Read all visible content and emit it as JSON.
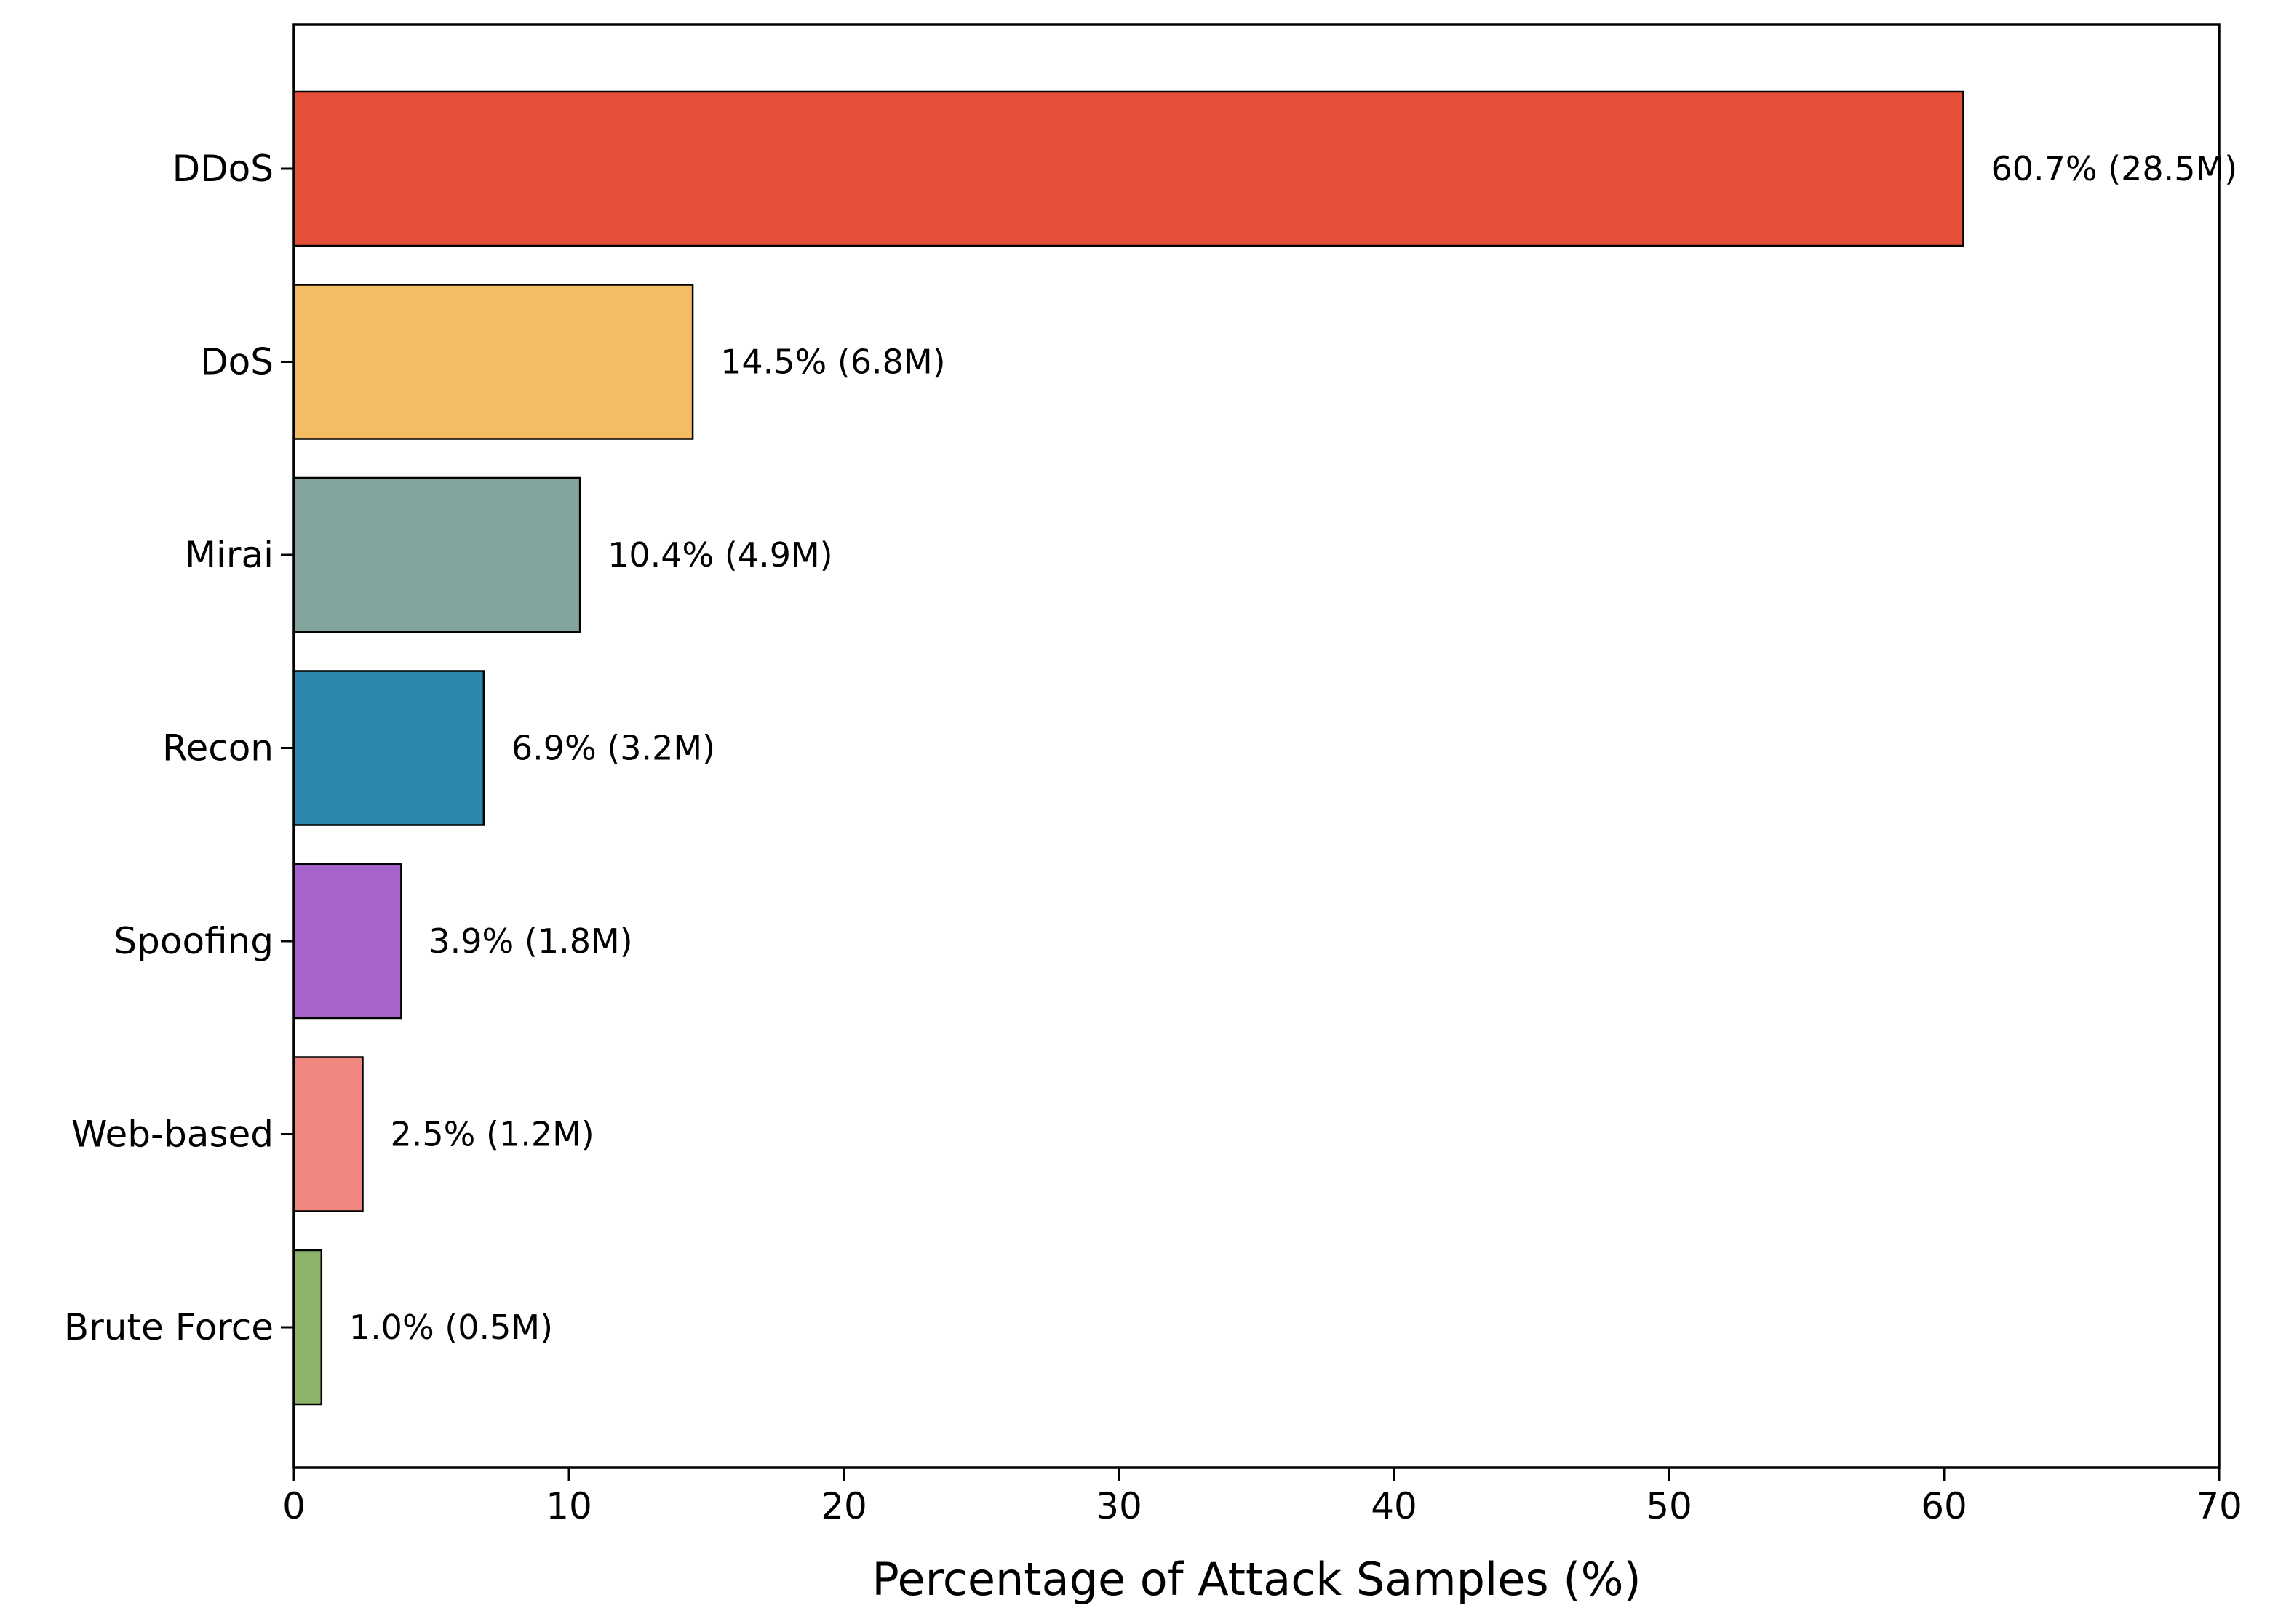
{
  "chart_data": {
    "type": "bar",
    "orientation": "horizontal",
    "title": "",
    "xlabel": "Percentage of Attack Samples (%)",
    "ylabel": "",
    "xlim": [
      0,
      70
    ],
    "x_ticks": [
      0,
      10,
      20,
      30,
      40,
      50,
      60,
      70
    ],
    "grid": false,
    "categories": [
      "DDoS",
      "DoS",
      "Mirai",
      "Recon",
      "Spoofing",
      "Web-based",
      "Brute Force"
    ],
    "values": [
      60.7,
      14.5,
      10.4,
      6.9,
      3.9,
      2.5,
      1.0
    ],
    "samples_millions": [
      28.5,
      6.8,
      4.9,
      3.2,
      1.8,
      1.2,
      0.5
    ],
    "data_labels": [
      "60.7% (28.5M)",
      "14.5% (6.8M)",
      "10.4% (4.9M)",
      "6.9% (3.2M)",
      "3.9% (1.8M)",
      "2.5% (1.2M)",
      "1.0% (0.5M)"
    ],
    "colors": [
      "#E65038",
      "#F4BD63",
      "#84A59D",
      "#2D86AB",
      "#A663CB",
      "#F08780",
      "#8DB46A"
    ],
    "edge_color": "#000000"
  }
}
